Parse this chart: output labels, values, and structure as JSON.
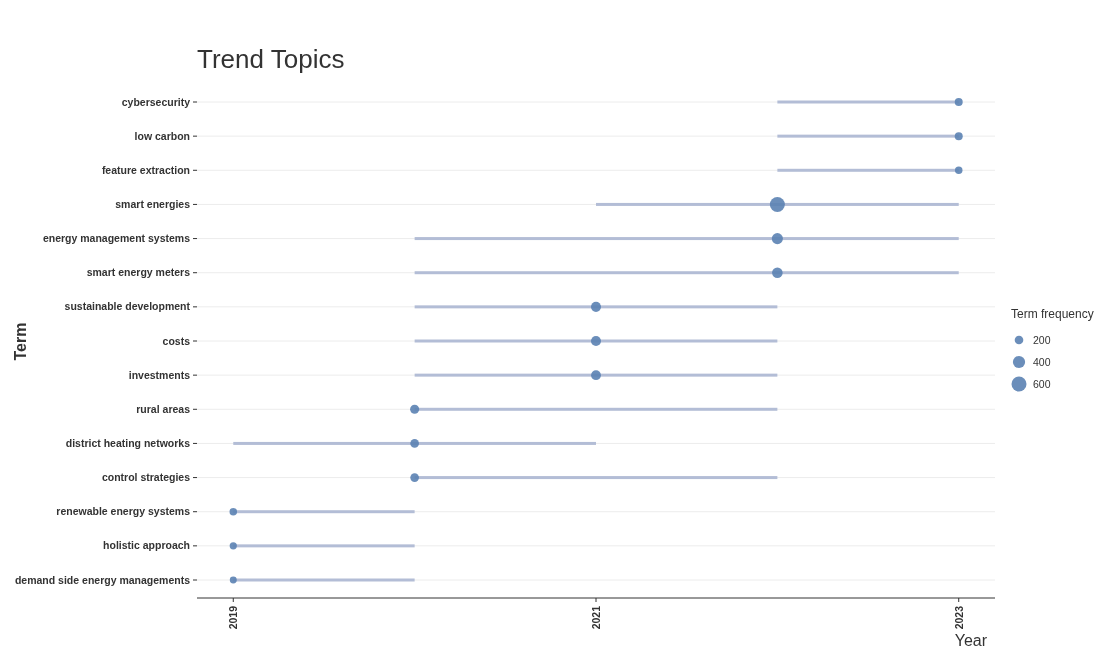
{
  "chart_data": {
    "type": "bar",
    "title": "Trend Topics",
    "xlabel": "Year",
    "ylabel": "Term",
    "legend_title": "Term frequency",
    "orientation": "horizontal",
    "categories": [
      "cybersecurity",
      "low carbon",
      "feature extraction",
      "smart energies",
      "energy management systems",
      "smart energy meters",
      "sustainable development",
      "costs",
      "investments",
      "rural areas",
      "district heating networks",
      "control strategies",
      "renewable energy systems",
      "holistic approach",
      "demand side energy managements"
    ],
    "xlim": [
      2018.8,
      2023.2
    ],
    "xticks": [
      2019,
      2021,
      2023
    ],
    "grid": "y",
    "size_legend": [
      200,
      400,
      600
    ],
    "series": [
      {
        "color": "#b3bdd6",
        "base": [
          2022,
          2022,
          2022,
          2021,
          2020,
          2020,
          2020,
          2020,
          2020,
          2020,
          2019,
          2020,
          2019,
          2019,
          2019
        ],
        "values": [
          1,
          1,
          1,
          2,
          3,
          3,
          2,
          2,
          2,
          2,
          2,
          2,
          1,
          1,
          1
        ]
      },
      {
        "type": "bubble",
        "color": "#5b82b3",
        "values": [
          2023,
          2023,
          2023,
          2022,
          2022,
          2022,
          2021,
          2021,
          2021,
          2020,
          2020,
          2020,
          2019,
          2019,
          2019
        ],
        "sizes": [
          170,
          170,
          150,
          600,
          330,
          300,
          270,
          270,
          260,
          220,
          200,
          200,
          150,
          140,
          130
        ]
      }
    ]
  }
}
